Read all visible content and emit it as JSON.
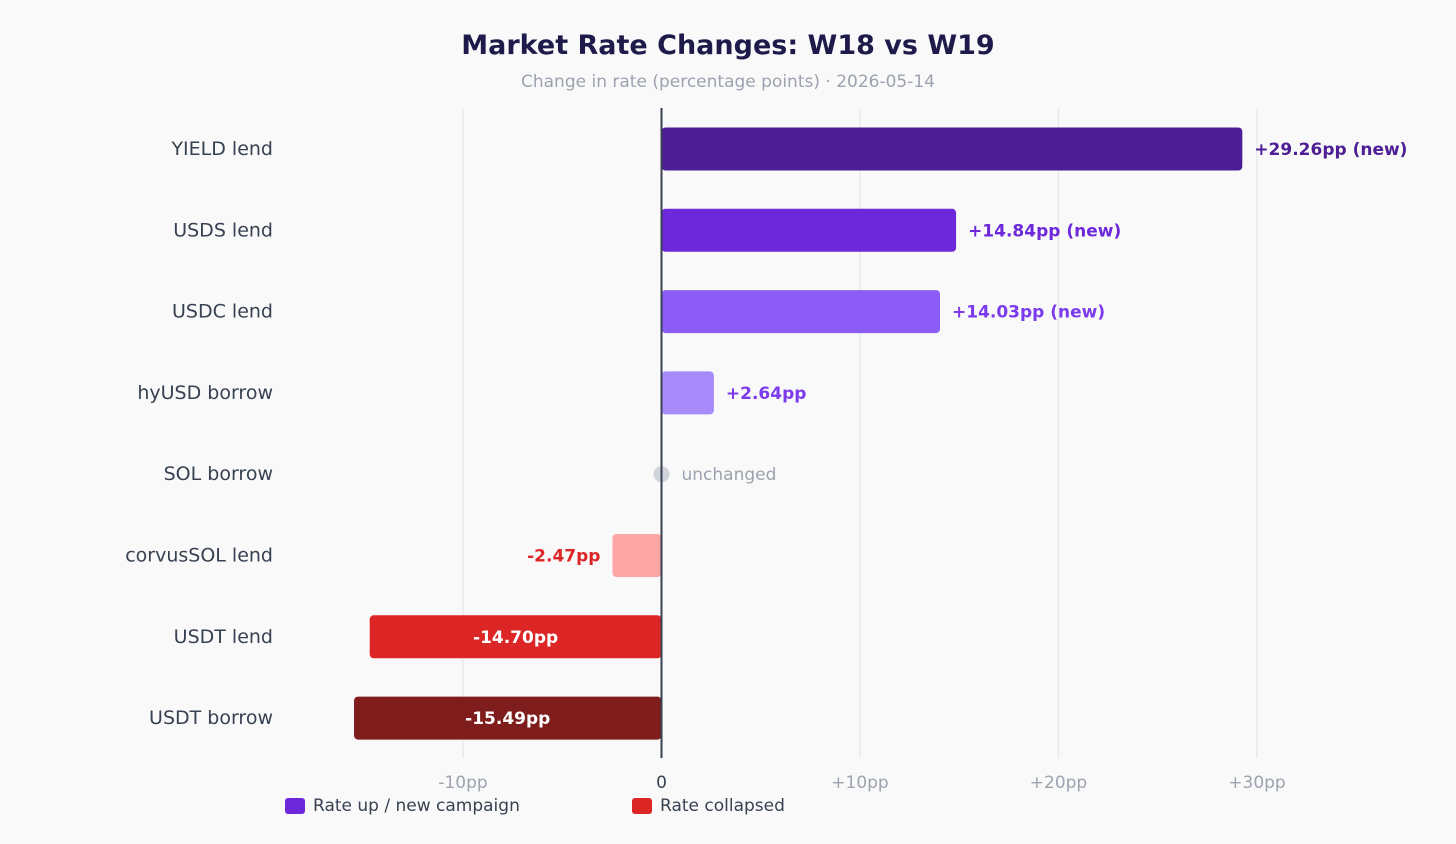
{
  "chart_data": {
    "type": "bar",
    "orientation": "horizontal",
    "title": "Market Rate Changes: W18 vs W19",
    "subtitle": "Change in rate (percentage points) · 2026-05-14",
    "categories": [
      "YIELD lend",
      "USDS lend",
      "USDC lend",
      "hyUSD borrow",
      "SOL borrow",
      "corvusSOL lend",
      "USDT lend",
      "USDT borrow"
    ],
    "values": [
      29.26,
      14.84,
      14.03,
      2.64,
      0,
      -2.47,
      -14.7,
      -15.49
    ],
    "data_labels": [
      "+29.26pp (new)",
      "+14.84pp (new)",
      "+14.03pp (new)",
      "+2.64pp",
      "unchanged",
      "-2.47pp",
      "-14.70pp",
      "-15.49pp"
    ],
    "bar_colors": [
      "#4c1d95",
      "#6d28d9",
      "#8b5cf6",
      "#a78bfa",
      "#d1d5db",
      "#fca5a5",
      "#dc2626",
      "#7f1d1d"
    ],
    "label_colors": [
      "#4c1d95",
      "#6d28d9",
      "#7c3aed",
      "#7c3aed",
      "#9ca3af",
      "#dc2626",
      "#ffffff",
      "#ffffff"
    ],
    "xlim": [
      -20,
      38
    ],
    "xticks": [
      -10,
      0,
      10,
      20,
      30
    ],
    "xtick_labels": [
      "-10pp",
      "0",
      "+10pp",
      "+20pp",
      "+30pp"
    ],
    "grid": true,
    "legend": {
      "position": "bottom-left",
      "entries": [
        {
          "label": "Rate up / new campaign",
          "color": "#6d28d9"
        },
        {
          "label": "Rate collapsed",
          "color": "#dc2626"
        }
      ]
    }
  }
}
